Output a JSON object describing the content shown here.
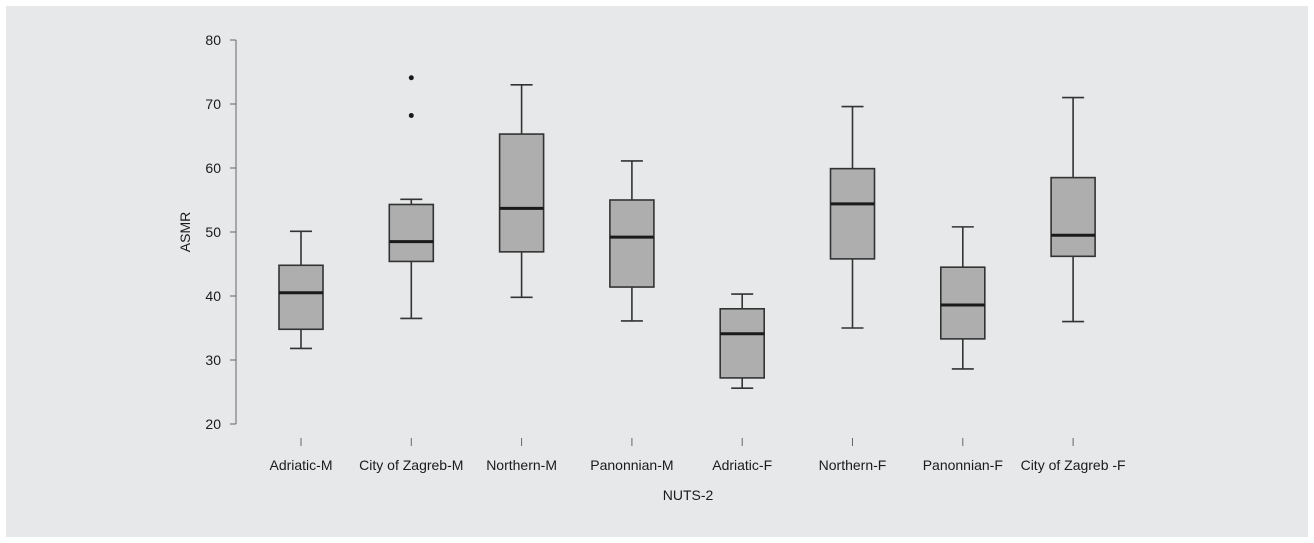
{
  "chart_data": {
    "type": "box",
    "title": "",
    "xlabel": "NUTS-2",
    "ylabel": "ASMR",
    "ylim": [
      20,
      80
    ],
    "yticks": [
      20,
      30,
      40,
      50,
      60,
      70,
      80
    ],
    "grid": false,
    "colors": {
      "box_fill": "#aeaeae",
      "line": "#333333",
      "background": "#e7e8e9"
    },
    "categories": [
      "Adriatic-M",
      "City of Zagreb-M",
      "Northern-M",
      "Panonnian-M",
      "Adriatic-F",
      "Northern-F",
      "Panonnian-F",
      "City of Zagreb -F"
    ],
    "boxes": [
      {
        "category": "Adriatic-M",
        "whisker_low": 31.8,
        "q1": 34.8,
        "median": 40.5,
        "q3": 44.8,
        "whisker_high": 50.1,
        "outliers": []
      },
      {
        "category": "City of Zagreb-M",
        "whisker_low": 36.5,
        "q1": 45.4,
        "median": 48.5,
        "q3": 54.3,
        "whisker_high": 55.1,
        "outliers": [
          68.2,
          74.1
        ]
      },
      {
        "category": "Northern-M",
        "whisker_low": 39.8,
        "q1": 46.9,
        "median": 53.7,
        "q3": 65.3,
        "whisker_high": 73.0,
        "outliers": []
      },
      {
        "category": "Panonnian-M",
        "whisker_low": 36.1,
        "q1": 41.4,
        "median": 49.2,
        "q3": 55.0,
        "whisker_high": 61.1,
        "outliers": []
      },
      {
        "category": "Adriatic-F",
        "whisker_low": 25.6,
        "q1": 27.2,
        "median": 34.1,
        "q3": 38.0,
        "whisker_high": 40.3,
        "outliers": []
      },
      {
        "category": "Northern-F",
        "whisker_low": 35.0,
        "q1": 45.8,
        "median": 54.4,
        "q3": 59.9,
        "whisker_high": 69.6,
        "outliers": []
      },
      {
        "category": "Panonnian-F",
        "whisker_low": 28.6,
        "q1": 33.3,
        "median": 38.6,
        "q3": 44.5,
        "whisker_high": 50.8,
        "outliers": []
      },
      {
        "category": "City of Zagreb -F",
        "whisker_low": 36.0,
        "q1": 46.2,
        "median": 49.5,
        "q3": 58.5,
        "whisker_high": 71.0,
        "outliers": []
      }
    ]
  }
}
